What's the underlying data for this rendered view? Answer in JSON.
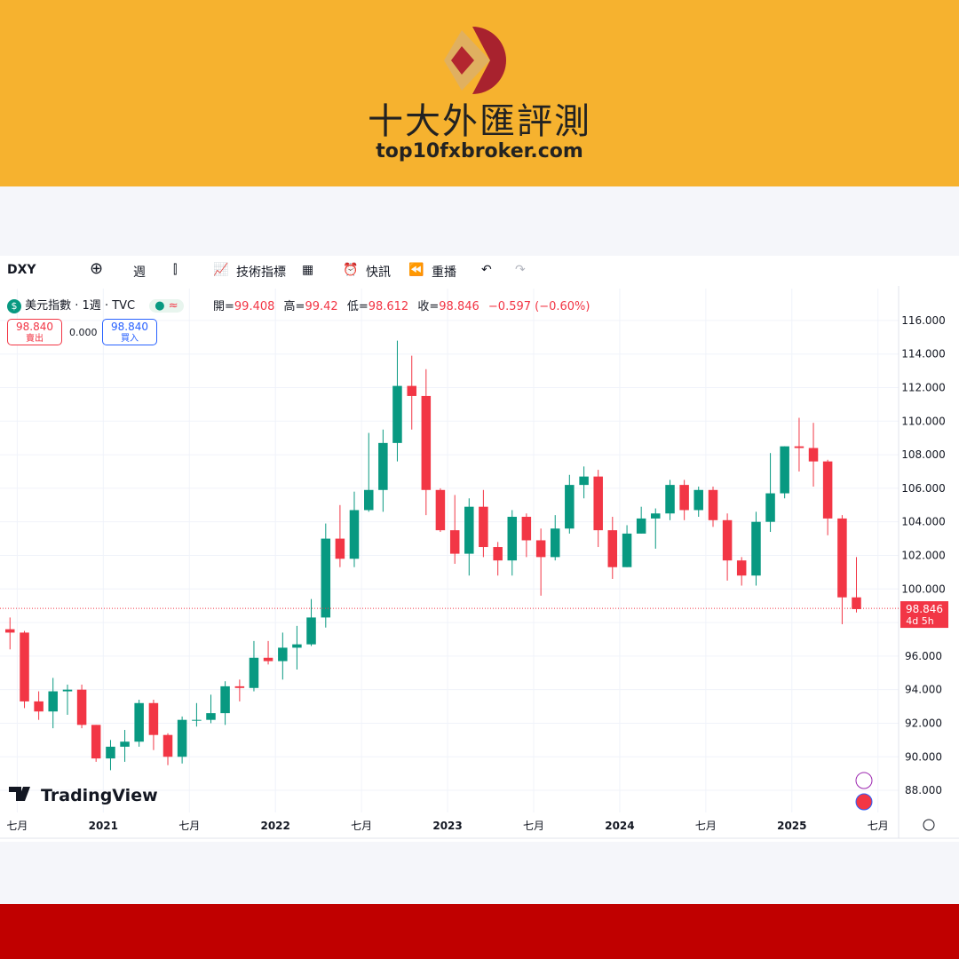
{
  "header": {
    "title": "十大外匯評測",
    "url": "top10fxbroker.com"
  },
  "toolbar": {
    "symbol": "DXY",
    "interval": "週",
    "indicators": "技術指標",
    "alerts": "快訊",
    "replay": "重播"
  },
  "legend": {
    "name": "美元指數 · 1週 · TVC",
    "open_label": "開=",
    "open": 99.408,
    "high_label": "高=",
    "high": 99.42,
    "low_label": "低=",
    "low": 98.612,
    "close_label": "收=",
    "close": 98.846,
    "change": "−0.597 (−0.60%)",
    "sell_price": "98.840",
    "sell_label": "賣出",
    "spread": "0.000",
    "buy_price": "98.840",
    "buy_label": "買入"
  },
  "chart_data": {
    "type": "candlestick",
    "watermark": "TradingView",
    "up_color": "#089981",
    "down_color": "#f23645",
    "grid": true,
    "xlim": [
      2020.4,
      2025.62
    ],
    "xticks": [
      {
        "value": 2020.5,
        "label": "七月"
      },
      2021,
      {
        "value": 2021.5,
        "label": "七月"
      },
      2022,
      {
        "value": 2022.5,
        "label": "七月"
      },
      2023,
      {
        "value": 2023.5,
        "label": "七月"
      },
      2024,
      {
        "value": 2024.5,
        "label": "七月"
      },
      2025,
      {
        "value": 2025.5,
        "label": "七月"
      }
    ],
    "ylim": [
      86.68,
      117.9
    ],
    "yticks": [
      {
        "value": 88,
        "label": "88.000"
      },
      {
        "value": 90,
        "label": "90.000"
      },
      {
        "value": 92,
        "label": "92.000"
      },
      {
        "value": 94,
        "label": "94.000"
      },
      {
        "value": 96,
        "label": "96.000"
      },
      {
        "value": 98,
        "label": "98.000"
      },
      {
        "value": 100,
        "label": "100.000"
      },
      {
        "value": 102,
        "label": "102.000"
      },
      {
        "value": 104,
        "label": "104.000"
      },
      {
        "value": 106,
        "label": "106.000"
      },
      {
        "value": 108,
        "label": "108.000"
      },
      {
        "value": 110,
        "label": "110.000"
      },
      {
        "value": 112,
        "label": "112.000"
      },
      {
        "value": 114,
        "label": "114.000"
      },
      {
        "value": 116,
        "label": "116.000"
      }
    ],
    "last_price": 98.846,
    "countdown": "4d 5h",
    "x": [
      2020.458,
      2020.542,
      2020.625,
      2020.708,
      2020.792,
      2020.875,
      2020.958,
      2021.042,
      2021.125,
      2021.208,
      2021.292,
      2021.375,
      2021.458,
      2021.542,
      2021.625,
      2021.708,
      2021.792,
      2021.875,
      2021.958,
      2022.042,
      2022.125,
      2022.208,
      2022.292,
      2022.375,
      2022.458,
      2022.542,
      2022.625,
      2022.708,
      2022.792,
      2022.875,
      2022.958,
      2023.042,
      2023.125,
      2023.208,
      2023.292,
      2023.375,
      2023.458,
      2023.542,
      2023.625,
      2023.708,
      2023.792,
      2023.875,
      2023.958,
      2024.042,
      2024.125,
      2024.208,
      2024.292,
      2024.375,
      2024.458,
      2024.542,
      2024.625,
      2024.708,
      2024.792,
      2024.875,
      2024.958,
      2025.042,
      2025.125,
      2025.208,
      2025.292,
      2025.375
    ],
    "open": [
      97.6,
      97.4,
      93.3,
      92.7,
      93.9,
      94.0,
      91.9,
      89.9,
      90.6,
      90.9,
      93.2,
      91.3,
      90.0,
      92.2,
      92.2,
      92.6,
      94.2,
      94.1,
      95.9,
      95.7,
      96.5,
      96.7,
      98.3,
      103.0,
      101.8,
      104.7,
      105.9,
      108.7,
      112.1,
      111.5,
      105.9,
      103.5,
      102.1,
      104.9,
      102.5,
      101.7,
      104.3,
      102.9,
      101.9,
      103.6,
      106.2,
      106.7,
      103.5,
      101.3,
      103.3,
      104.2,
      104.5,
      106.2,
      104.7,
      105.9,
      104.1,
      101.7,
      100.8,
      104.0,
      105.7,
      108.5,
      108.4,
      107.6,
      104.2,
      99.5
    ],
    "high": [
      98.3,
      97.5,
      93.9,
      94.7,
      94.3,
      94.3,
      91.9,
      91.0,
      91.6,
      93.4,
      93.4,
      91.4,
      92.4,
      93.2,
      93.7,
      94.5,
      94.6,
      96.9,
      96.9,
      97.4,
      97.8,
      99.4,
      103.9,
      105.0,
      105.8,
      109.3,
      109.5,
      114.8,
      113.9,
      113.1,
      106.0,
      105.6,
      105.4,
      105.9,
      102.8,
      104.7,
      104.5,
      103.6,
      104.4,
      106.8,
      107.3,
      107.1,
      104.3,
      103.8,
      104.9,
      104.8,
      106.5,
      106.5,
      106.1,
      106.1,
      104.5,
      101.9,
      104.6,
      108.1,
      108.5,
      110.2,
      109.9,
      107.7,
      104.4,
      101.9
    ],
    "low": [
      96.4,
      92.9,
      92.2,
      91.7,
      92.5,
      91.7,
      89.7,
      89.2,
      89.7,
      90.6,
      90.4,
      89.5,
      89.6,
      91.8,
      92.0,
      91.9,
      93.3,
      93.9,
      95.5,
      94.6,
      95.2,
      96.6,
      97.7,
      101.3,
      101.3,
      104.6,
      104.6,
      107.6,
      109.5,
      104.4,
      103.4,
      101.5,
      100.8,
      101.9,
      100.8,
      100.8,
      101.9,
      99.6,
      101.7,
      103.3,
      105.4,
      102.5,
      100.6,
      101.3,
      103.3,
      102.4,
      104.1,
      104.1,
      104.3,
      103.7,
      100.5,
      100.2,
      100.2,
      103.4,
      105.4,
      107.0,
      106.1,
      103.2,
      97.9,
      98.6
    ],
    "close": [
      97.4,
      93.3,
      92.7,
      93.9,
      94.0,
      91.9,
      89.9,
      90.6,
      90.9,
      93.2,
      91.3,
      90.0,
      92.2,
      92.2,
      92.6,
      94.2,
      94.1,
      95.9,
      95.7,
      96.5,
      96.7,
      98.3,
      103.0,
      101.8,
      104.7,
      105.9,
      108.7,
      112.1,
      111.5,
      105.9,
      103.5,
      102.1,
      104.9,
      102.5,
      101.7,
      104.3,
      102.9,
      101.9,
      103.6,
      106.2,
      106.7,
      103.5,
      101.3,
      103.3,
      104.2,
      104.5,
      106.2,
      104.7,
      105.9,
      104.1,
      101.7,
      100.8,
      104.0,
      105.7,
      108.5,
      108.4,
      107.6,
      104.2,
      99.5,
      98.8
    ]
  }
}
